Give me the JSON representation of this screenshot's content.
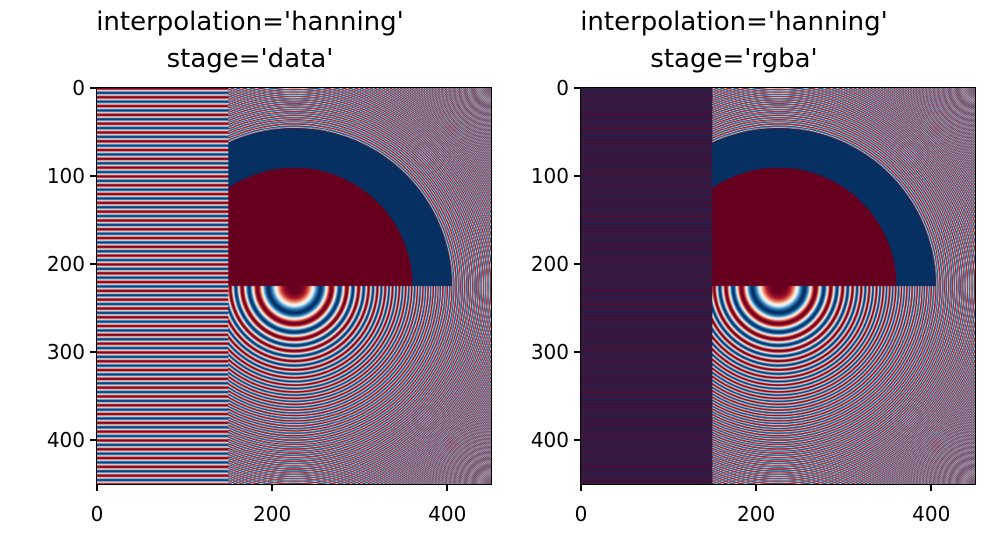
{
  "chart_data": [
    {
      "type": "heatmap",
      "title": [
        "interpolation='hanning'",
        "stage='data'"
      ],
      "colormap": "RdBu",
      "xlim": [
        0,
        450
      ],
      "ylim": [
        450,
        0
      ],
      "xticks": [
        "0",
        "200",
        "400"
      ],
      "yticks": [
        "0",
        "100",
        "200",
        "300",
        "400"
      ],
      "grid": false
    },
    {
      "type": "heatmap",
      "title": [
        "interpolation='hanning'",
        "stage='rgba'"
      ],
      "colormap": "RdBu",
      "xlim": [
        0,
        450
      ],
      "ylim": [
        450,
        0
      ],
      "xticks": [
        "0",
        "200",
        "400"
      ],
      "yticks": [
        "0",
        "100",
        "200",
        "300",
        "400"
      ],
      "grid": false
    }
  ],
  "colors": {
    "low": "#67001f",
    "high": "#053061"
  }
}
